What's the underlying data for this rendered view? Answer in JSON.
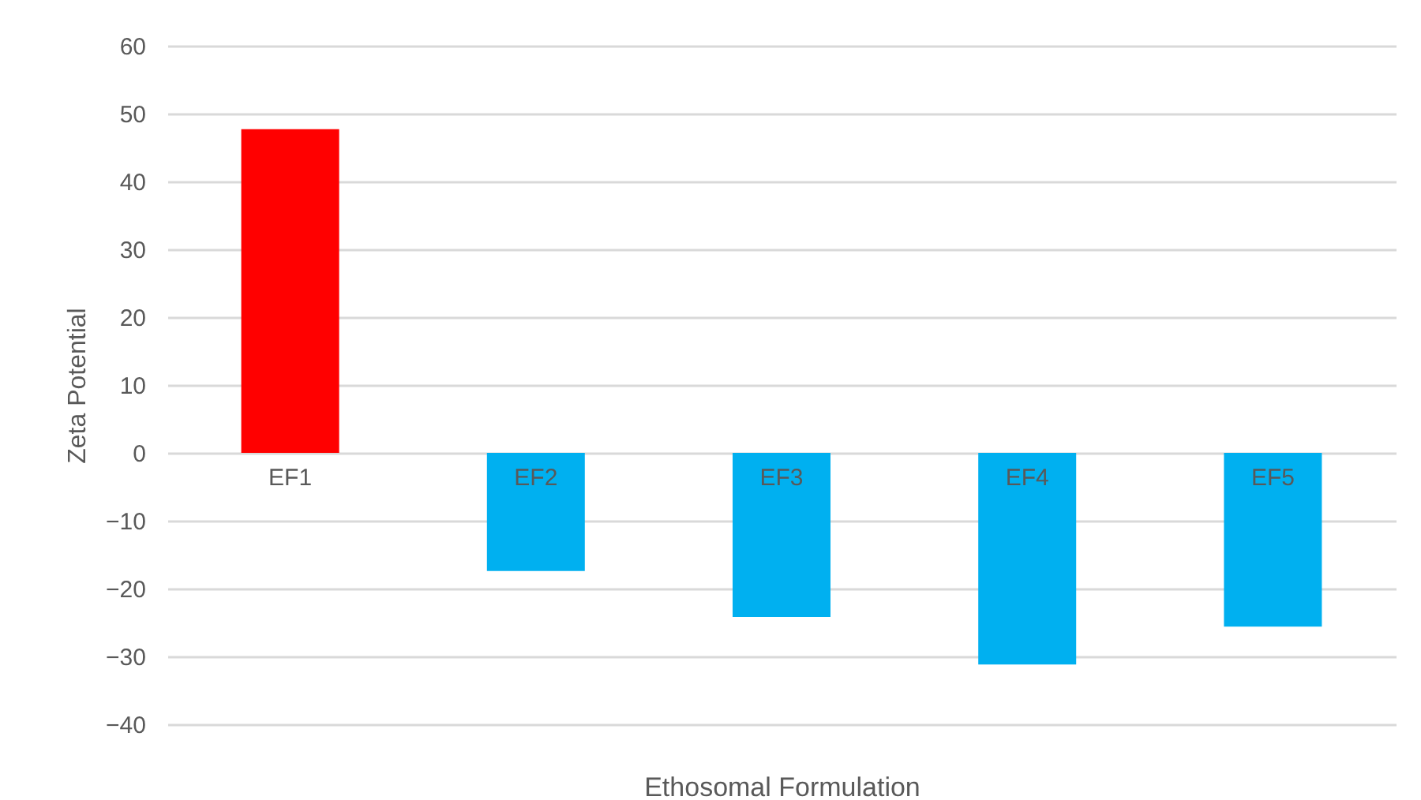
{
  "chart_data": {
    "type": "bar",
    "xlabel": "Ethosomal Formulation",
    "ylabel": "Zeta Potential",
    "categories": [
      "EF1",
      "EF2",
      "EF3",
      "EF4",
      "EF5"
    ],
    "values": [
      47.7,
      -17.4,
      -24.2,
      -31.2,
      -25.6
    ],
    "colors": [
      "#ff0000",
      "#00b0f0",
      "#00b0f0",
      "#00b0f0",
      "#00b0f0"
    ],
    "ylim": [
      -40,
      60
    ],
    "yticks": [
      -40,
      -30,
      -20,
      -10,
      0,
      10,
      20,
      30,
      40,
      50,
      60
    ],
    "grid": "y"
  }
}
